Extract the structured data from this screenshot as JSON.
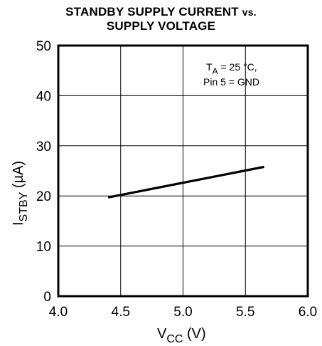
{
  "chart_data": {
    "type": "line",
    "title_line1": "STANDBY SUPPLY CURRENT",
    "title_vs": "vs.",
    "title_line2": "SUPPLY VOLTAGE",
    "xlabel_main": "V",
    "xlabel_sub": "CC",
    "xlabel_unit": " (V)",
    "ylabel_main": "I",
    "ylabel_sub": "STBY",
    "ylabel_unit": " (µA)",
    "xlim": [
      4.0,
      6.0
    ],
    "ylim": [
      0,
      50
    ],
    "x_ticks": [
      4.0,
      4.5,
      5.0,
      5.5,
      6.0
    ],
    "x_tick_labels": [
      "4.0",
      "4.5",
      "5.0",
      "5.5",
      "6.0"
    ],
    "y_ticks": [
      0,
      10,
      20,
      30,
      40,
      50
    ],
    "y_tick_labels": [
      "0",
      "10",
      "20",
      "30",
      "40",
      "50"
    ],
    "grid": true,
    "annotation": {
      "ta_main": "T",
      "ta_sub": "A",
      "ta_rest": " = 25 °C,",
      "line2": "Pin 5 = GND"
    },
    "series": [
      {
        "x": [
          4.4,
          5.65
        ],
        "y": [
          19.7,
          25.8
        ]
      }
    ]
  }
}
